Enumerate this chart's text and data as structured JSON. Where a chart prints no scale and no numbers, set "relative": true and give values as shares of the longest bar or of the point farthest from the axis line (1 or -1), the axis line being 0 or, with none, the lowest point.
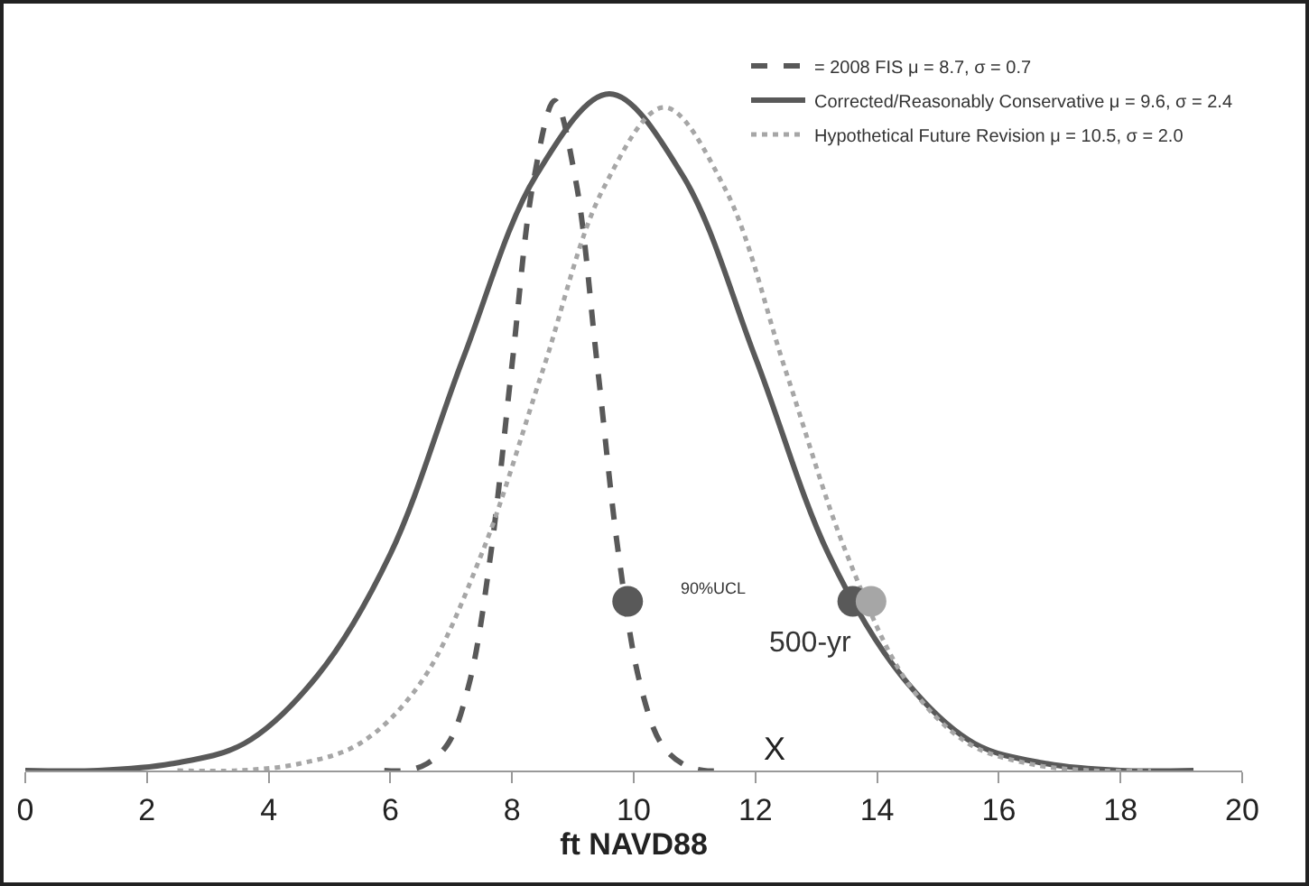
{
  "chart_data": {
    "type": "line",
    "relative": true,
    "xlabel": "ft NAVD88",
    "xlim": [
      0,
      20
    ],
    "xticks": [
      0,
      2,
      4,
      6,
      8,
      10,
      12,
      14,
      16,
      18,
      20
    ],
    "grid": false,
    "legend": "top right",
    "series": [
      {
        "name": "= 2008 FIS μ = 8.7, σ = 0.7",
        "color": "#595959",
        "line_style": "dashed",
        "x": [
          5.9,
          6.25,
          6.6,
          6.95,
          7.3,
          7.65,
          8.0,
          8.35,
          8.7,
          9.05,
          9.4,
          9.75,
          10.1,
          10.45,
          10.8,
          11.15,
          11.5
        ],
        "values": [
          0,
          0,
          0.01,
          0.04,
          0.13,
          0.32,
          0.6,
          0.87,
          0.99,
          0.87,
          0.6,
          0.32,
          0.13,
          0.04,
          0.01,
          0,
          0
        ]
      },
      {
        "name": "Corrected/Reasonably Conservative μ = 9.6, σ = 2.4",
        "color": "#595959",
        "line_style": "solid",
        "x": [
          0,
          1.2,
          2.4,
          3.6,
          4.8,
          6,
          7.2,
          8.4,
          9.6,
          10.8,
          12,
          13.2,
          14.4,
          15.6,
          16.8,
          18,
          19.2
        ],
        "values": [
          0,
          0,
          0.01,
          0.04,
          0.14,
          0.32,
          0.61,
          0.88,
          1,
          0.88,
          0.61,
          0.32,
          0.14,
          0.04,
          0.01,
          0,
          0
        ]
      },
      {
        "name": "Hypothetical Future Revision μ = 10.5, σ = 2.0",
        "color": "#a6a6a6",
        "line_style": "dotted",
        "x": [
          2.5,
          3.5,
          4.5,
          5.5,
          6.5,
          7.5,
          8.5,
          9.5,
          10.5,
          11.5,
          12.5,
          13.5,
          14.5,
          15.5,
          16.5,
          17.5,
          18.5
        ],
        "values": [
          0,
          0,
          0.01,
          0.04,
          0.13,
          0.32,
          0.59,
          0.86,
          0.98,
          0.86,
          0.59,
          0.32,
          0.13,
          0.04,
          0.01,
          0,
          0
        ]
      },
      {
        "type": "scatter",
        "marker": "circle",
        "color": "#595959",
        "x": [
          9.9,
          13.6
        ],
        "values": [
          0.25,
          0.25
        ]
      },
      {
        "type": "scatter",
        "marker": "circle",
        "color": "#a6a6a6",
        "x": [
          13.9
        ],
        "values": [
          0.25
        ]
      }
    ],
    "annotations": [
      "90%UCL",
      "500-yr",
      "X"
    ]
  }
}
